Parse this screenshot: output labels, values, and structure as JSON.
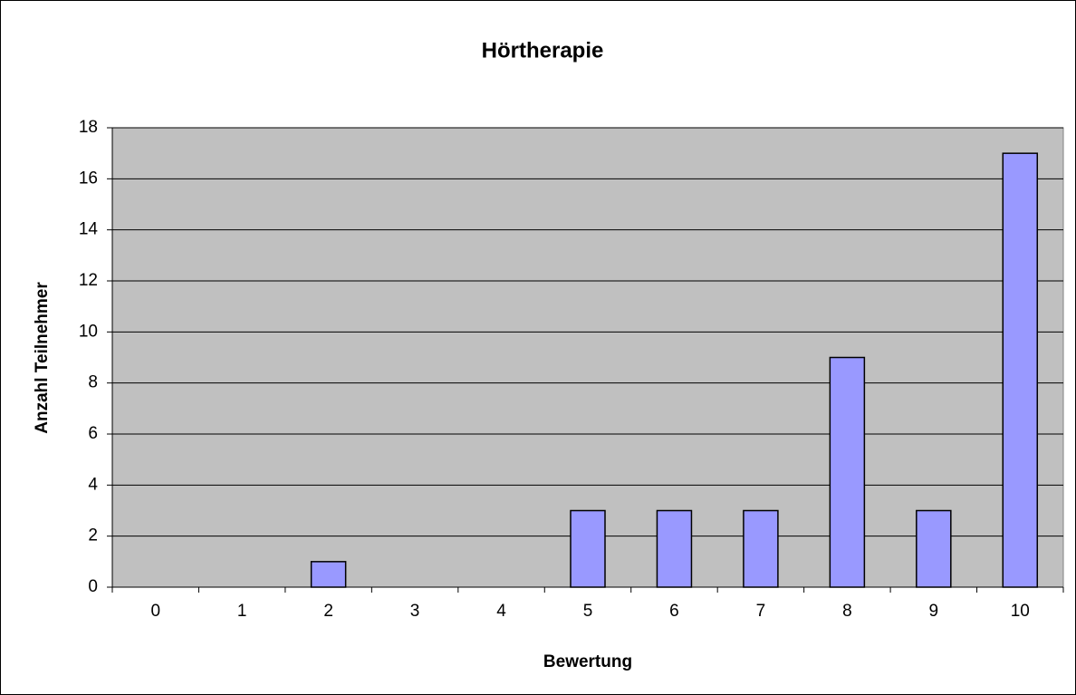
{
  "chart_data": {
    "type": "bar",
    "title": "Hörtherapie",
    "x_label": "Bewertung",
    "y_label": "Anzahl Teilnehmer",
    "categories": [
      "0",
      "1",
      "2",
      "3",
      "4",
      "5",
      "6",
      "7",
      "8",
      "9",
      "10"
    ],
    "values": [
      0,
      0,
      1,
      0,
      0,
      3,
      3,
      3,
      9,
      3,
      17
    ],
    "color": "#9999ff",
    "background": "#c0c0c0",
    "ylim": [
      0,
      18
    ],
    "yticks": [
      0,
      2,
      4,
      6,
      8,
      10,
      12,
      14,
      16,
      18
    ],
    "grid": true
  }
}
